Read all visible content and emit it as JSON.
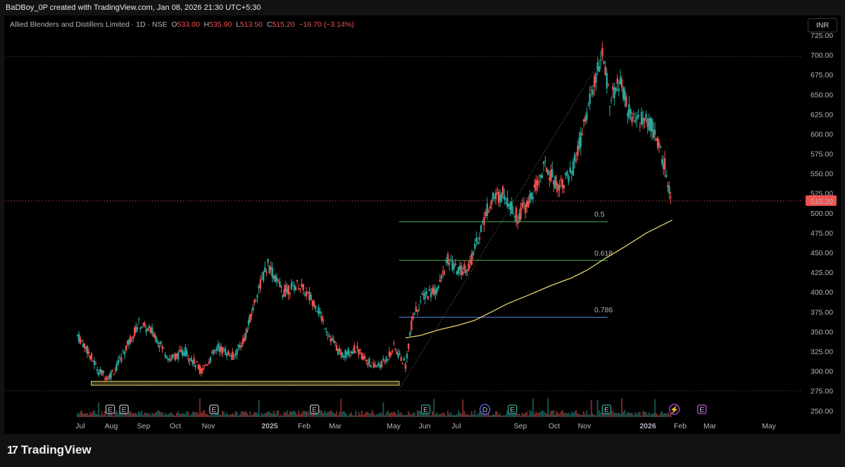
{
  "header": {
    "attribution": "BaDBoy_0P created with TradingView.com, Jan 08, 2026 21:30 UTC+5:30"
  },
  "legend": {
    "symbol": "Allied Blenders and Distillers Limited · 1D · NSE",
    "open_label": "O",
    "open": "533.00",
    "high_label": "H",
    "high": "535.90",
    "low_label": "L",
    "low": "513.50",
    "close_label": "C",
    "close": "515.20",
    "change": "−16.70 (−3.14%)"
  },
  "currency_button": "INR",
  "footer": {
    "brand": "TradingView",
    "brand_mark": "17"
  },
  "colors": {
    "up": "#26a69a",
    "down": "#ef5350",
    "ma": "#e8d46b",
    "fib_50": "#4caf50",
    "fib_618": "#4caf50",
    "fib_786": "#5b8def",
    "support_zone": "#e8d46b"
  },
  "chart_data": {
    "type": "candlestick",
    "title": "Allied Blenders and Distillers Limited · 1D · NSE",
    "y_axis": {
      "min": 240,
      "max": 725,
      "ticks": [
        250,
        275,
        300,
        325,
        350,
        375,
        400,
        425,
        450,
        475,
        500,
        525,
        550,
        575,
        600,
        625,
        650,
        675,
        700,
        725
      ],
      "last_price_label": "515.20"
    },
    "x_axis": {
      "ticks": [
        "Jul",
        "Aug",
        "Sep",
        "Oct",
        "Nov",
        "2025",
        "Feb",
        "Mar",
        "May",
        "Jun",
        "Jul",
        "Sep",
        "Oct",
        "Nov",
        "2026",
        "Feb",
        "Mar",
        "May"
      ],
      "bold_ticks": [
        "2025",
        "2026"
      ],
      "range_months": [
        "2024-06-25",
        "2026-05-10"
      ]
    },
    "ohlc_trend": [
      [
        "2024-06-25",
        345
      ],
      [
        "2024-07-03",
        330
      ],
      [
        "2024-07-15",
        300
      ],
      [
        "2024-07-24",
        292
      ],
      [
        "2024-08-01",
        305
      ],
      [
        "2024-08-10",
        330
      ],
      [
        "2024-08-22",
        360
      ],
      [
        "2024-09-05",
        348
      ],
      [
        "2024-09-20",
        315
      ],
      [
        "2024-10-05",
        325
      ],
      [
        "2024-10-20",
        300
      ],
      [
        "2024-11-05",
        330
      ],
      [
        "2024-11-20",
        318
      ],
      [
        "2024-12-01",
        345
      ],
      [
        "2024-12-12",
        400
      ],
      [
        "2024-12-22",
        435
      ],
      [
        "2025-01-05",
        400
      ],
      [
        "2025-01-20",
        410
      ],
      [
        "2025-02-05",
        385
      ],
      [
        "2025-02-18",
        345
      ],
      [
        "2025-03-01",
        320
      ],
      [
        "2025-03-15",
        328
      ],
      [
        "2025-04-01",
        305
      ],
      [
        "2025-04-10",
        310
      ],
      [
        "2025-04-20",
        330
      ],
      [
        "2025-05-01",
        308
      ],
      [
        "2025-05-08",
        370
      ],
      [
        "2025-05-18",
        395
      ],
      [
        "2025-06-01",
        405
      ],
      [
        "2025-06-10",
        440
      ],
      [
        "2025-06-20",
        425
      ],
      [
        "2025-07-01",
        435
      ],
      [
        "2025-07-10",
        475
      ],
      [
        "2025-07-20",
        515
      ],
      [
        "2025-08-01",
        525
      ],
      [
        "2025-08-15",
        495
      ],
      [
        "2025-08-28",
        520
      ],
      [
        "2025-09-10",
        560
      ],
      [
        "2025-09-22",
        535
      ],
      [
        "2025-10-05",
        550
      ],
      [
        "2025-10-15",
        600
      ],
      [
        "2025-10-25",
        660
      ],
      [
        "2025-11-03",
        700
      ],
      [
        "2025-11-10",
        645
      ],
      [
        "2025-11-20",
        665
      ],
      [
        "2025-12-01",
        615
      ],
      [
        "2025-12-10",
        620
      ],
      [
        "2025-12-20",
        610
      ],
      [
        "2026-01-01",
        560
      ],
      [
        "2026-01-08",
        515.2
      ]
    ],
    "moving_average": [
      [
        "2025-05-01",
        342
      ],
      [
        "2025-05-15",
        345
      ],
      [
        "2025-06-01",
        352
      ],
      [
        "2025-06-20",
        358
      ],
      [
        "2025-07-05",
        364
      ],
      [
        "2025-07-20",
        374
      ],
      [
        "2025-08-05",
        385
      ],
      [
        "2025-08-25",
        396
      ],
      [
        "2025-09-15",
        408
      ],
      [
        "2025-10-05",
        418
      ],
      [
        "2025-10-20",
        428
      ],
      [
        "2025-11-05",
        442
      ],
      [
        "2025-11-25",
        458
      ],
      [
        "2025-12-15",
        475
      ],
      [
        "2026-01-08",
        491
      ]
    ],
    "fibonacci": [
      {
        "label": "0.5",
        "price": 489
      },
      {
        "label": "0.618",
        "price": 440
      },
      {
        "label": "0.786",
        "price": 368
      }
    ],
    "fib_start_date": "2025-04-25",
    "fib_end_date": "2025-11-08",
    "trend_line": {
      "from": [
        "2025-04-25",
        277
      ],
      "to": [
        "2025-11-05",
        702
      ]
    },
    "horizontal_levels": [
      698,
      515.2,
      275
    ],
    "support_zone": {
      "from": "2024-07-08",
      "to": "2025-04-25",
      "low": 282,
      "high": 287
    },
    "event_markers": [
      {
        "date": "2024-07-26",
        "label": "E",
        "kind": "earnings-past"
      },
      {
        "date": "2024-08-08",
        "label": "E",
        "kind": "earnings-past"
      },
      {
        "date": "2024-11-01",
        "label": "E",
        "kind": "earnings-past"
      },
      {
        "date": "2025-02-04",
        "label": "E",
        "kind": "earnings-past"
      },
      {
        "date": "2025-05-20",
        "label": "E",
        "kind": "earnings"
      },
      {
        "date": "2025-07-15",
        "label": "D",
        "kind": "dividend"
      },
      {
        "date": "2025-08-10",
        "label": "E",
        "kind": "earnings"
      },
      {
        "date": "2025-11-07",
        "label": "E",
        "kind": "earnings"
      },
      {
        "date": "2026-01-10",
        "label": "⚡",
        "kind": "split"
      },
      {
        "date": "2026-02-05",
        "label": "E",
        "kind": "earnings-future"
      }
    ]
  }
}
